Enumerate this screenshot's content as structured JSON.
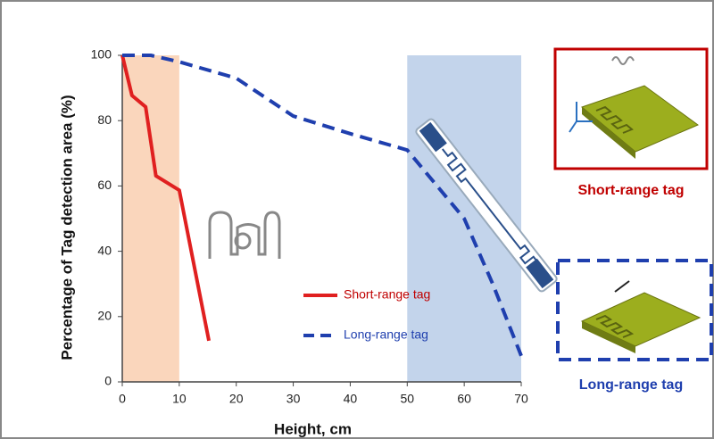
{
  "chart_data": {
    "type": "line",
    "y_label": "Percentage of Tag detection area (%)",
    "x_label": "Height, cm",
    "xlim": [
      0,
      70
    ],
    "xticks": [
      0,
      10,
      20,
      30,
      40,
      50,
      60,
      70
    ],
    "ylim": [
      0,
      100
    ],
    "yticks": [
      0,
      20,
      40,
      60,
      80,
      100
    ],
    "shaded_regions": [
      {
        "x": [
          0,
          10
        ],
        "color": "#f9cfb0"
      },
      {
        "x": [
          50,
          70
        ],
        "color": "#b8cce8"
      }
    ],
    "series": [
      {
        "name": "Short-range tag",
        "color": "#e02020",
        "dash": false,
        "x": [
          0,
          1.7,
          4.1,
          5.9,
          10,
          15.2
        ],
        "values": [
          100,
          87.7,
          84.2,
          63.1,
          58.7,
          12.6
        ]
      },
      {
        "name": "Long-range tag",
        "color": "#1f3fae",
        "dash": true,
        "x": [
          0,
          5,
          10,
          20,
          30,
          40,
          50,
          60,
          65,
          70
        ],
        "values": [
          100,
          100,
          98,
          93,
          81.4,
          76,
          71,
          50,
          30,
          8
        ]
      }
    ],
    "panels": [
      {
        "label": "Short-range tag",
        "color": "#c00000"
      },
      {
        "label": "Long-range tag",
        "color": "#1f3fae"
      }
    ]
  }
}
